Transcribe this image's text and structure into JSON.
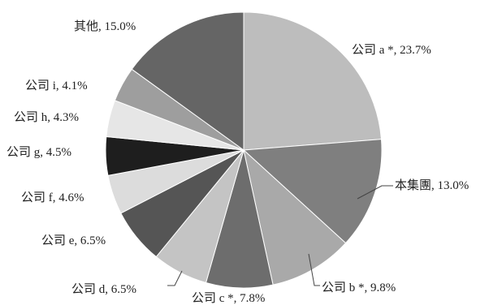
{
  "chart_data": {
    "type": "pie",
    "start": "top",
    "direction": "clockwise",
    "slices": [
      {
        "label": "公司 a *, 23.7%",
        "value": 23.7,
        "color": "#bdbdbd"
      },
      {
        "label": "本集團, 13.0%",
        "value": 13.0,
        "color": "#7f7f7f"
      },
      {
        "label": "公司 b *, 9.8%",
        "value": 9.8,
        "color": "#a9a9a9"
      },
      {
        "label": "公司 c *, 7.8%",
        "value": 7.8,
        "color": "#6d6d6d"
      },
      {
        "label": "公司 d, 6.5%",
        "value": 6.5,
        "color": "#c4c4c4"
      },
      {
        "label": "公司 e, 6.5%",
        "value": 6.5,
        "color": "#555555"
      },
      {
        "label": "公司 f, 4.6%",
        "value": 4.6,
        "color": "#dcdcdc"
      },
      {
        "label": "公司 g, 4.5%",
        "value": 4.5,
        "color": "#1e1e1e"
      },
      {
        "label": "公司 h, 4.3%",
        "value": 4.3,
        "color": "#e6e6e6"
      },
      {
        "label": "公司 i, 4.1%",
        "value": 4.1,
        "color": "#9e9e9e"
      },
      {
        "label": "其他, 15.0%",
        "value": 15.0,
        "color": "#656565"
      }
    ]
  }
}
